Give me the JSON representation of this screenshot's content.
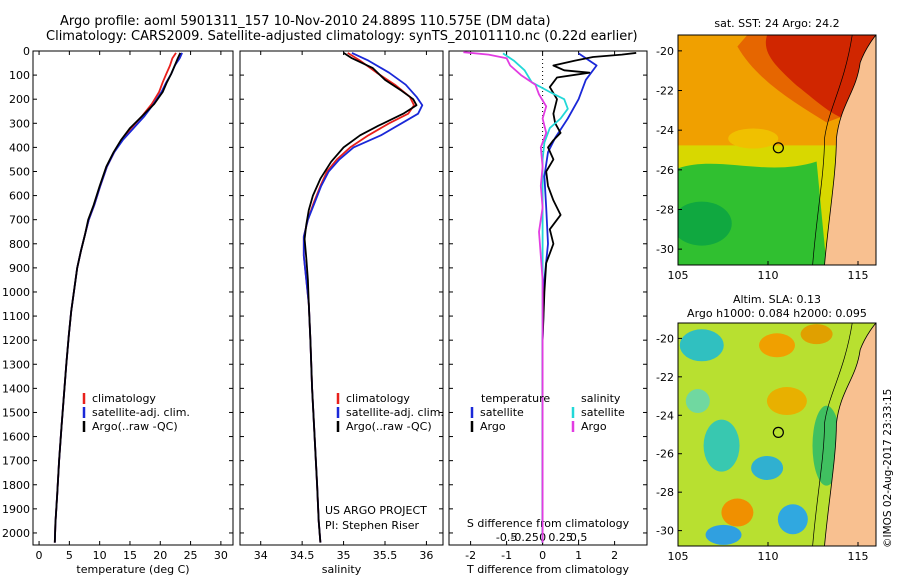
{
  "header": {
    "line1": "Argo profile: aoml 5901311_157 10-Nov-2010 24.889S 110.575E (DM data)",
    "line2": "Climatology: CARS2009. Satellite-adjusted climatology: synTS_20101110.nc (0.22d earlier)"
  },
  "depth_axis": {
    "ylim": [
      0,
      2050
    ],
    "ticks": [
      0,
      100,
      200,
      300,
      400,
      500,
      600,
      700,
      800,
      900,
      1000,
      1100,
      1200,
      1300,
      1400,
      1500,
      1600,
      1700,
      1800,
      1900,
      2000
    ],
    "inverted": true
  },
  "colors": {
    "climatology": "#e8201c",
    "satellite": "#1a28d8",
    "argo": "#000000",
    "salinity_sat": "#22d8d8",
    "salinity_argo": "#e23ce2"
  },
  "chart_data": [
    {
      "type": "line",
      "name": "temperature-profile",
      "xlabel": "temperature (deg C)",
      "xlim": [
        -1,
        32
      ],
      "xticks": [
        0,
        5,
        10,
        15,
        20,
        25,
        30
      ],
      "legend": [
        "climatology",
        "satellite-adj. clim.",
        "Argo(..raw -QC)"
      ],
      "series": [
        {
          "name": "climatology",
          "color": "#e8201c",
          "points": [
            [
              22.6,
              8
            ],
            [
              22.0,
              30
            ],
            [
              21.6,
              60
            ],
            [
              21.0,
              95
            ],
            [
              20.4,
              130
            ],
            [
              19.8,
              170
            ],
            [
              18.6,
              220
            ],
            [
              17.0,
              270
            ],
            [
              15.2,
              320
            ],
            [
              13.6,
              370
            ],
            [
              12.4,
              420
            ],
            [
              11.2,
              480
            ],
            [
              10.1,
              560
            ],
            [
              9.1,
              640
            ],
            [
              8.2,
              700
            ],
            [
              7.6,
              760
            ],
            [
              6.9,
              830
            ],
            [
              6.3,
              900
            ],
            [
              5.8,
              990
            ],
            [
              5.3,
              1080
            ],
            [
              4.9,
              1180
            ],
            [
              4.5,
              1300
            ],
            [
              4.1,
              1430
            ],
            [
              3.7,
              1560
            ],
            [
              3.3,
              1700
            ],
            [
              3.0,
              1840
            ],
            [
              2.7,
              1960
            ],
            [
              2.6,
              2040
            ]
          ]
        },
        {
          "name": "satellite-adj. clim.",
          "color": "#1a28d8",
          "points": [
            [
              23.6,
              8
            ],
            [
              23.2,
              30
            ],
            [
              22.4,
              60
            ],
            [
              21.8,
              95
            ],
            [
              21.0,
              130
            ],
            [
              20.2,
              170
            ],
            [
              18.9,
              220
            ],
            [
              17.4,
              270
            ],
            [
              15.6,
              320
            ],
            [
              13.8,
              370
            ],
            [
              12.4,
              420
            ],
            [
              11.2,
              480
            ],
            [
              10.1,
              560
            ],
            [
              9.1,
              640
            ],
            [
              8.2,
              700
            ],
            [
              7.6,
              760
            ],
            [
              6.9,
              830
            ],
            [
              6.3,
              900
            ],
            [
              5.8,
              990
            ],
            [
              5.3,
              1080
            ],
            [
              4.9,
              1180
            ],
            [
              4.5,
              1300
            ],
            [
              4.1,
              1430
            ],
            [
              3.7,
              1560
            ],
            [
              3.3,
              1700
            ],
            [
              3.0,
              1840
            ],
            [
              2.7,
              1960
            ],
            [
              2.6,
              2040
            ]
          ]
        },
        {
          "name": "Argo(..raw -QC)",
          "color": "#000000",
          "points": [
            [
              23.3,
              8
            ],
            [
              22.9,
              30
            ],
            [
              22.4,
              60
            ],
            [
              21.8,
              95
            ],
            [
              21.1,
              130
            ],
            [
              20.4,
              170
            ],
            [
              19.0,
              220
            ],
            [
              17.0,
              270
            ],
            [
              15.0,
              320
            ],
            [
              13.5,
              370
            ],
            [
              12.3,
              420
            ],
            [
              11.1,
              480
            ],
            [
              10.0,
              560
            ],
            [
              9.0,
              640
            ],
            [
              8.1,
              700
            ],
            [
              7.6,
              760
            ],
            [
              6.9,
              830
            ],
            [
              6.3,
              900
            ],
            [
              5.8,
              990
            ],
            [
              5.3,
              1080
            ],
            [
              4.9,
              1180
            ],
            [
              4.5,
              1300
            ],
            [
              4.1,
              1430
            ],
            [
              3.7,
              1560
            ],
            [
              3.3,
              1700
            ],
            [
              3.0,
              1840
            ],
            [
              2.7,
              1960
            ],
            [
              2.6,
              2040
            ]
          ]
        }
      ]
    },
    {
      "type": "line",
      "name": "salinity-profile",
      "xlabel": "salinity",
      "xlim": [
        33.75,
        36.2
      ],
      "xticks": [
        34,
        34.5,
        35,
        35.5,
        36
      ],
      "xticklabels": [
        "34",
        "34.5",
        "35",
        "35.5",
        "36"
      ],
      "legend": [
        "climatology",
        "satellite-adj. clim.",
        "Argo(..raw -QC)"
      ],
      "annotations": [
        "US ARGO PROJECT",
        "PI: Stephen Riser"
      ],
      "series": [
        {
          "name": "climatology",
          "color": "#e8201c",
          "points": [
            [
              35.05,
              8
            ],
            [
              35.2,
              40
            ],
            [
              35.4,
              90
            ],
            [
              35.62,
              140
            ],
            [
              35.8,
              190
            ],
            [
              35.85,
              225
            ],
            [
              35.78,
              260
            ],
            [
              35.55,
              300
            ],
            [
              35.3,
              350
            ],
            [
              35.08,
              400
            ],
            [
              34.92,
              450
            ],
            [
              34.8,
              500
            ],
            [
              34.72,
              560
            ],
            [
              34.64,
              630
            ],
            [
              34.57,
              700
            ],
            [
              34.52,
              770
            ],
            [
              34.52,
              850
            ],
            [
              34.55,
              950
            ],
            [
              34.58,
              1050
            ],
            [
              34.6,
              1200
            ],
            [
              34.62,
              1400
            ],
            [
              34.65,
              1600
            ],
            [
              34.68,
              1800
            ],
            [
              34.7,
              1950
            ],
            [
              34.72,
              2040
            ]
          ]
        },
        {
          "name": "satellite-adj. clim.",
          "color": "#1a28d8",
          "points": [
            [
              35.1,
              8
            ],
            [
              35.3,
              40
            ],
            [
              35.55,
              90
            ],
            [
              35.75,
              140
            ],
            [
              35.88,
              190
            ],
            [
              35.95,
              225
            ],
            [
              35.9,
              260
            ],
            [
              35.7,
              300
            ],
            [
              35.45,
              350
            ],
            [
              35.12,
              400
            ],
            [
              34.95,
              450
            ],
            [
              34.82,
              500
            ],
            [
              34.73,
              560
            ],
            [
              34.65,
              630
            ],
            [
              34.57,
              700
            ],
            [
              34.52,
              770
            ],
            [
              34.52,
              850
            ],
            [
              34.55,
              950
            ],
            [
              34.58,
              1050
            ],
            [
              34.6,
              1200
            ],
            [
              34.62,
              1400
            ],
            [
              34.65,
              1600
            ],
            [
              34.68,
              1800
            ],
            [
              34.7,
              1950
            ],
            [
              34.72,
              2040
            ]
          ]
        },
        {
          "name": "Argo(..raw -QC)",
          "color": "#000000",
          "points": [
            [
              35.0,
              8
            ],
            [
              35.1,
              30
            ],
            [
              35.35,
              70
            ],
            [
              35.5,
              120
            ],
            [
              35.7,
              165
            ],
            [
              35.84,
              200
            ],
            [
              35.88,
              225
            ],
            [
              35.72,
              260
            ],
            [
              35.42,
              310
            ],
            [
              35.2,
              350
            ],
            [
              35.0,
              400
            ],
            [
              34.85,
              460
            ],
            [
              34.72,
              530
            ],
            [
              34.63,
              600
            ],
            [
              34.58,
              660
            ],
            [
              34.55,
              720
            ],
            [
              34.53,
              780
            ],
            [
              34.55,
              860
            ],
            [
              34.57,
              950
            ],
            [
              34.58,
              1050
            ],
            [
              34.6,
              1200
            ],
            [
              34.62,
              1400
            ],
            [
              34.65,
              1600
            ],
            [
              34.68,
              1800
            ],
            [
              34.7,
              1950
            ],
            [
              34.72,
              2040
            ]
          ]
        }
      ]
    },
    {
      "type": "line",
      "name": "difference-profile",
      "xlabel": "T difference from climatology",
      "xlabel2": "S difference from climatology",
      "xlim": [
        -2.6,
        2.9
      ],
      "xticks": [
        -2,
        -1,
        0,
        1,
        2
      ],
      "xticks2": [
        -0.5,
        -0.25,
        0,
        0.25,
        0.5
      ],
      "xticklabels2": [
        "-0.5",
        "-0.25",
        "0",
        "0.25",
        "0.5"
      ],
      "legend_titles": [
        "temperature",
        "salinity"
      ],
      "legend": [
        "satellite",
        "Argo",
        "satellite",
        "Argo"
      ],
      "series": [
        {
          "name": "temperature satellite",
          "color": "#1a28d8",
          "points": [
            [
              1.0,
              10
            ],
            [
              1.5,
              60
            ],
            [
              1.2,
              120
            ],
            [
              1.0,
              200
            ],
            [
              0.7,
              280
            ],
            [
              0.35,
              360
            ],
            [
              0.15,
              420
            ],
            [
              0.05,
              520
            ],
            [
              0.1,
              650
            ],
            [
              0.15,
              800
            ],
            [
              0.05,
              950
            ],
            [
              0.0,
              1200
            ],
            [
              0.0,
              2040
            ]
          ]
        },
        {
          "name": "temperature Argo",
          "color": "#000000",
          "points": [
            [
              2.6,
              8
            ],
            [
              2.2,
              15
            ],
            [
              1.4,
              25
            ],
            [
              0.9,
              40
            ],
            [
              0.3,
              60
            ],
            [
              0.6,
              80
            ],
            [
              1.3,
              90
            ],
            [
              0.4,
              110
            ],
            [
              0.2,
              150
            ],
            [
              0.4,
              200
            ],
            [
              0.3,
              260
            ],
            [
              0.35,
              300
            ],
            [
              0.5,
              340
            ],
            [
              0.3,
              370
            ],
            [
              0.15,
              400
            ],
            [
              0.3,
              450
            ],
            [
              0.1,
              500
            ],
            [
              0.15,
              560
            ],
            [
              0.3,
              620
            ],
            [
              0.5,
              680
            ],
            [
              0.2,
              740
            ],
            [
              0.3,
              800
            ],
            [
              0.1,
              880
            ],
            [
              0.05,
              1000
            ],
            [
              0.0,
              1200
            ],
            [
              0.0,
              2040
            ]
          ]
        },
        {
          "name": "salinity satellite",
          "color": "#22d8d8",
          "points": [
            [
              -1.1,
              10
            ],
            [
              -0.8,
              40
            ],
            [
              -0.5,
              80
            ],
            [
              -0.3,
              130
            ],
            [
              0.2,
              170
            ],
            [
              0.6,
              200
            ],
            [
              0.7,
              240
            ],
            [
              0.5,
              280
            ],
            [
              0.2,
              320
            ],
            [
              0.05,
              380
            ],
            [
              0.0,
              450
            ],
            [
              0.0,
              600
            ],
            [
              0.0,
              2040
            ]
          ]
        },
        {
          "name": "salinity Argo",
          "color": "#e23ce2",
          "points": [
            [
              -2.2,
              5
            ],
            [
              -1.5,
              15
            ],
            [
              -1.0,
              30
            ],
            [
              -0.9,
              60
            ],
            [
              -0.6,
              100
            ],
            [
              -0.2,
              140
            ],
            [
              -0.1,
              180
            ],
            [
              0.1,
              230
            ],
            [
              0.0,
              280
            ],
            [
              0.1,
              340
            ],
            [
              -0.05,
              400
            ],
            [
              0.0,
              480
            ],
            [
              -0.05,
              560
            ],
            [
              0.0,
              650
            ],
            [
              -0.1,
              750
            ],
            [
              -0.05,
              850
            ],
            [
              0.0,
              950
            ],
            [
              0.0,
              1100
            ],
            [
              0.0,
              2040
            ]
          ]
        }
      ]
    }
  ],
  "map_top": {
    "title": "sat. SST: 24 Argo: 24.2",
    "xticks": [
      "105",
      "110",
      "115"
    ],
    "yticks": [
      "-20",
      "-22",
      "-24",
      "-26",
      "-28",
      "-30"
    ]
  },
  "map_bottom": {
    "title1": "Altim. SLA: 0.13",
    "title2": "Argo h1000: 0.084 h2000: 0.095",
    "xticks": [
      "105",
      "110",
      "115"
    ],
    "yticks": [
      "-20",
      "-22",
      "-24",
      "-26",
      "-28",
      "-30"
    ]
  },
  "footer": {
    "credit": "©IMOS 02-Aug-2017 23:33:15"
  }
}
